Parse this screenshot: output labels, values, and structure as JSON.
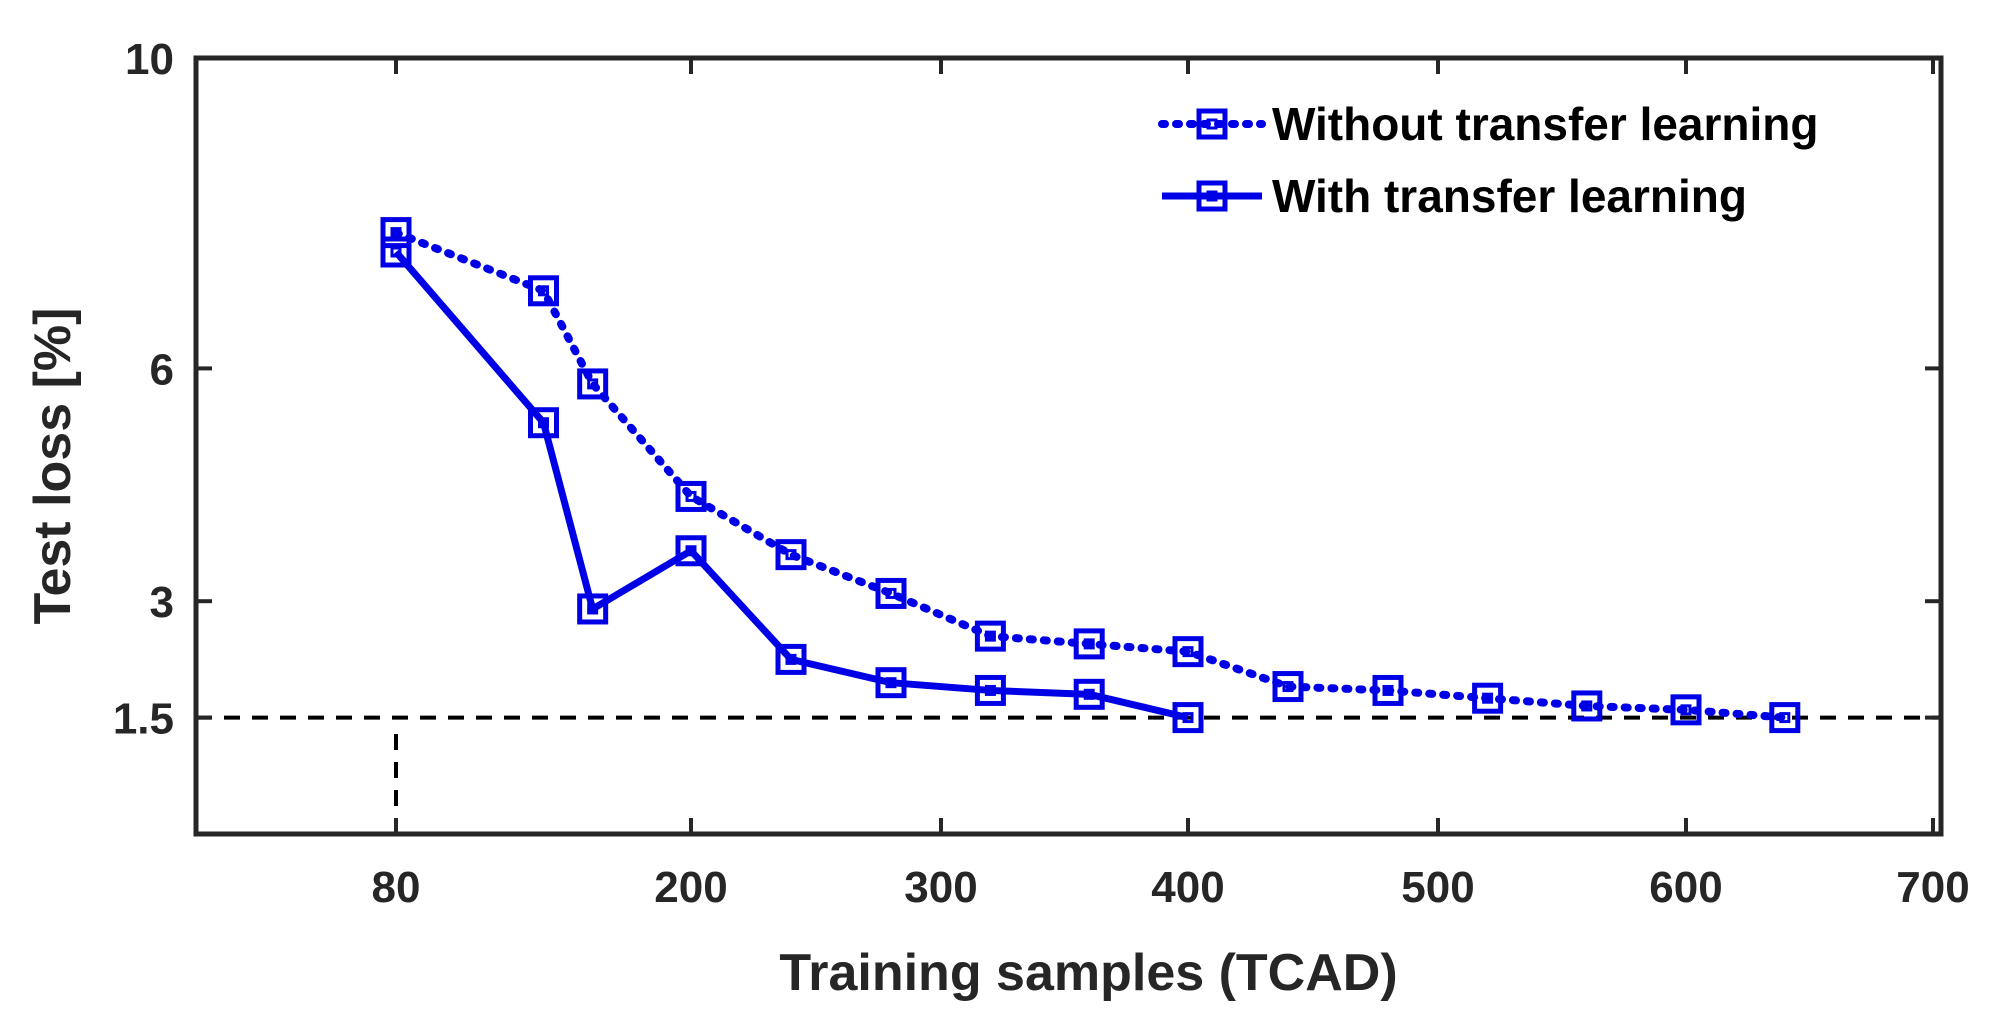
{
  "chart_data": {
    "type": "line",
    "xlabel": "Training samples (TCAD)",
    "ylabel": "Test loss [%]",
    "xlim": [
      0,
      700
    ],
    "ylim": [
      0,
      10
    ],
    "x_axis_scale": "nonlinear: ticks equally spaced",
    "xticks": [
      80,
      200,
      300,
      400,
      500,
      600,
      700
    ],
    "yticks": [
      1.5,
      3,
      6,
      10
    ],
    "legend_position": "top-right",
    "series": [
      {
        "name": "Without transfer learning",
        "style": "dotted",
        "marker": "square",
        "color": "#0000e6",
        "x": [
          80,
          140,
          160,
          200,
          240,
          280,
          320,
          360,
          400,
          440,
          480,
          520,
          560,
          600,
          640
        ],
        "y": [
          7.75,
          7.0,
          5.8,
          4.35,
          3.6,
          3.1,
          2.55,
          2.45,
          2.35,
          1.9,
          1.85,
          1.75,
          1.65,
          1.6,
          1.5
        ]
      },
      {
        "name": "With transfer learning",
        "style": "solid",
        "marker": "square",
        "color": "#0000e6",
        "x": [
          80,
          140,
          160,
          200,
          240,
          280,
          320,
          360,
          400
        ],
        "y": [
          7.5,
          5.3,
          2.9,
          3.65,
          2.25,
          1.95,
          1.85,
          1.8,
          1.5
        ]
      }
    ],
    "reference_lines": [
      {
        "orientation": "horizontal",
        "style": "dashed",
        "color": "#000000",
        "value": 1.5
      },
      {
        "orientation": "vertical",
        "style": "dashed",
        "color": "#000000",
        "value": 80,
        "from": 0,
        "to": 1.5
      }
    ]
  }
}
